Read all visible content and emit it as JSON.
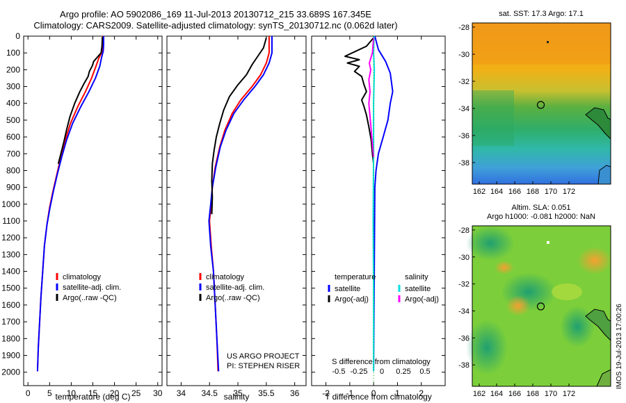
{
  "header": {
    "title1": "Argo profile: AO 5902086_169 11-Jul-2013 20130712_215 33.689S 167.345E",
    "title2": "Climatology: CARS2009. Satellite-adjusted climatology: synTS_20130712.nc (0.062d later)"
  },
  "colors": {
    "climatology": "#ff0000",
    "satellite": "#0000ff",
    "argo": "#000000",
    "sat_sal": "#00e0e0",
    "argo_sal": "#ff00ff"
  },
  "chart_data": [
    {
      "type": "line",
      "name": "temperature-profile",
      "xlabel": "temperature (deg C)",
      "ylabel": "",
      "xlim": [
        -1,
        31
      ],
      "ylim": [
        2080,
        0
      ],
      "xticks": [
        0,
        5,
        10,
        15,
        20,
        25,
        30
      ],
      "yticks": [
        0,
        100,
        200,
        300,
        400,
        500,
        600,
        700,
        800,
        900,
        1000,
        1100,
        1200,
        1300,
        1400,
        1500,
        1600,
        1700,
        1800,
        1900,
        2000
      ],
      "legend": {
        "placement": "lower-middle",
        "entries": [
          "climatology",
          "satellite-adj. clim.",
          "Argo(..raw -QC)"
        ]
      },
      "series": [
        {
          "name": "climatology",
          "color": "#ff0000",
          "points": [
            [
              17.3,
              0
            ],
            [
              17.3,
              50
            ],
            [
              17.2,
              90
            ],
            [
              16.4,
              130
            ],
            [
              15.7,
              180
            ],
            [
              14.7,
              250
            ],
            [
              13.3,
              330
            ],
            [
              11.5,
              420
            ],
            [
              9.8,
              520
            ],
            [
              8.6,
              620
            ],
            [
              7.6,
              720
            ],
            [
              6.7,
              820
            ],
            [
              5.8,
              920
            ],
            [
              5.0,
              1020
            ],
            [
              4.4,
              1120
            ],
            [
              3.8,
              1250
            ],
            [
              3.4,
              1400
            ],
            [
              3.0,
              1550
            ],
            [
              2.7,
              1700
            ],
            [
              2.4,
              1850
            ],
            [
              2.2,
              1995
            ]
          ]
        },
        {
          "name": "satellite-adj. clim.",
          "color": "#0000ff",
          "points": [
            [
              17.5,
              0
            ],
            [
              17.5,
              50
            ],
            [
              17.4,
              90
            ],
            [
              17.0,
              130
            ],
            [
              16.6,
              180
            ],
            [
              15.6,
              250
            ],
            [
              14.1,
              330
            ],
            [
              12.2,
              420
            ],
            [
              10.3,
              520
            ],
            [
              8.9,
              620
            ],
            [
              7.8,
              720
            ],
            [
              6.8,
              820
            ],
            [
              5.9,
              920
            ],
            [
              5.1,
              1020
            ],
            [
              4.4,
              1120
            ],
            [
              3.8,
              1250
            ],
            [
              3.4,
              1400
            ],
            [
              3.0,
              1550
            ],
            [
              2.7,
              1700
            ],
            [
              2.4,
              1850
            ],
            [
              2.2,
              1995
            ]
          ]
        },
        {
          "name": "Argo(..raw -QC)",
          "color": "#000000",
          "points": [
            [
              17.2,
              5
            ],
            [
              17.1,
              60
            ],
            [
              16.9,
              100
            ],
            [
              15.2,
              150
            ],
            [
              14.9,
              175
            ],
            [
              14.2,
              210
            ],
            [
              13.9,
              240
            ],
            [
              13.0,
              280
            ],
            [
              12.0,
              330
            ],
            [
              10.8,
              400
            ],
            [
              9.7,
              480
            ],
            [
              8.9,
              560
            ],
            [
              8.2,
              640
            ],
            [
              7.6,
              700
            ],
            [
              7.0,
              760
            ]
          ]
        }
      ]
    },
    {
      "type": "line",
      "name": "salinity-profile",
      "xlabel": "salinity",
      "ylabel": "",
      "xlim": [
        33.75,
        36.2
      ],
      "ylim": [
        2080,
        0
      ],
      "xticks": [
        34,
        34.5,
        35,
        35.5,
        36
      ],
      "legend": {
        "placement": "lower-middle",
        "entries": [
          "climatology",
          "satellite-adj. clim.",
          "Argo(..raw -QC)"
        ]
      },
      "annotations": [
        "US ARGO PROJECT",
        "PI: STEPHEN RISER"
      ],
      "series": [
        {
          "name": "climatology",
          "color": "#ff0000",
          "points": [
            [
              35.55,
              0
            ],
            [
              35.55,
              100
            ],
            [
              35.5,
              160
            ],
            [
              35.4,
              230
            ],
            [
              35.25,
              300
            ],
            [
              35.05,
              380
            ],
            [
              34.9,
              460
            ],
            [
              34.77,
              560
            ],
            [
              34.68,
              660
            ],
            [
              34.6,
              780
            ],
            [
              34.55,
              900
            ],
            [
              34.53,
              1000
            ],
            [
              34.5,
              1100
            ],
            [
              34.53,
              1250
            ],
            [
              34.57,
              1400
            ],
            [
              34.6,
              1600
            ],
            [
              34.63,
              1800
            ],
            [
              34.65,
              1995
            ]
          ]
        },
        {
          "name": "satellite-adj. clim.",
          "color": "#0000ff",
          "points": [
            [
              35.6,
              0
            ],
            [
              35.6,
              100
            ],
            [
              35.55,
              160
            ],
            [
              35.45,
              230
            ],
            [
              35.3,
              300
            ],
            [
              35.1,
              380
            ],
            [
              34.93,
              460
            ],
            [
              34.79,
              560
            ],
            [
              34.69,
              660
            ],
            [
              34.61,
              780
            ],
            [
              34.55,
              900
            ],
            [
              34.52,
              1000
            ],
            [
              34.49,
              1100
            ],
            [
              34.52,
              1250
            ],
            [
              34.57,
              1400
            ],
            [
              34.6,
              1600
            ],
            [
              34.63,
              1800
            ],
            [
              34.66,
              1995
            ]
          ]
        },
        {
          "name": "Argo(..raw -QC)",
          "color": "#000000",
          "points": [
            [
              35.5,
              10
            ],
            [
              35.45,
              70
            ],
            [
              35.35,
              120
            ],
            [
              35.25,
              170
            ],
            [
              35.15,
              230
            ],
            [
              35.0,
              290
            ],
            [
              34.85,
              360
            ],
            [
              34.75,
              440
            ],
            [
              34.68,
              520
            ],
            [
              34.62,
              600
            ],
            [
              34.58,
              680
            ],
            [
              34.55,
              760
            ],
            [
              34.54,
              860
            ],
            [
              34.55,
              960
            ],
            [
              34.54,
              1060
            ]
          ]
        }
      ]
    },
    {
      "type": "line",
      "name": "difference-from-climatology",
      "xlabel": "T difference from climatology",
      "xlabel2": "S difference from climatology",
      "xlim": [
        -2.6,
        3.0
      ],
      "ylim": [
        2080,
        0
      ],
      "xticks": [
        -2,
        -1,
        0,
        1,
        2
      ],
      "sticks": [
        -0.5,
        -0.25,
        0,
        0.25,
        0.5
      ],
      "legend": {
        "placement": "lower",
        "entries": [
          "temperature",
          "satellite",
          "Argo(-adj)",
          "salinity",
          "satellite",
          "Argo(-adj)"
        ]
      },
      "series": [
        {
          "name": "temperature satellite",
          "color": "#0000ff",
          "points": [
            [
              0.05,
              0
            ],
            [
              0.2,
              80
            ],
            [
              0.5,
              150
            ],
            [
              0.7,
              220
            ],
            [
              0.8,
              330
            ],
            [
              0.7,
              400
            ],
            [
              0.6,
              500
            ],
            [
              0.4,
              600
            ],
            [
              0.2,
              700
            ],
            [
              0.1,
              800
            ],
            [
              0.05,
              900
            ],
            [
              0.0,
              1995
            ]
          ]
        },
        {
          "name": "temperature Argo(-adj)",
          "color": "#000000",
          "points": [
            [
              0.0,
              10
            ],
            [
              -0.3,
              60
            ],
            [
              -1.2,
              120
            ],
            [
              -0.6,
              140
            ],
            [
              -1.1,
              160
            ],
            [
              -0.6,
              180
            ],
            [
              -0.8,
              210
            ],
            [
              -0.5,
              240
            ],
            [
              -0.4,
              290
            ],
            [
              -0.3,
              330
            ],
            [
              -0.5,
              380
            ],
            [
              -0.4,
              420
            ],
            [
              -0.3,
              470
            ],
            [
              -0.2,
              540
            ],
            [
              -0.1,
              620
            ],
            [
              -0.05,
              700
            ],
            [
              0.0,
              760
            ]
          ]
        },
        {
          "name": "salinity satellite",
          "color": "#00e0e0",
          "points": [
            [
              0.02,
              0
            ],
            [
              0.0,
              100
            ],
            [
              0.03,
              200
            ],
            [
              0.0,
              400
            ],
            [
              0.0,
              700
            ],
            [
              -0.02,
              1100
            ],
            [
              0.0,
              1500
            ],
            [
              0.0,
              1995
            ]
          ]
        },
        {
          "name": "salinity Argo(-adj)",
          "color": "#ff00ff",
          "points": [
            [
              0.0,
              10
            ],
            [
              -0.05,
              100
            ],
            [
              -0.18,
              160
            ],
            [
              -0.12,
              200
            ],
            [
              -0.2,
              260
            ],
            [
              -0.15,
              330
            ],
            [
              -0.2,
              400
            ],
            [
              -0.15,
              480
            ],
            [
              -0.1,
              560
            ],
            [
              -0.05,
              640
            ],
            [
              0.0,
              720
            ]
          ]
        }
      ]
    }
  ],
  "maps": {
    "sst": {
      "title": "sat. SST: 17.3 Argo: 17.1",
      "yticks": [
        "-28",
        "-30",
        "-32",
        "-34",
        "-36",
        "-38"
      ],
      "xticks": [
        "162",
        "164",
        "166",
        "168",
        "170",
        "172"
      ]
    },
    "sla": {
      "title1": "Altim. SLA: 0.051",
      "title2": "Argo h1000: -0.081 h2000: NaN",
      "yticks": [
        "-28",
        "-30",
        "-32",
        "-34",
        "-36",
        "-38"
      ],
      "xticks": [
        "162",
        "164",
        "166",
        "168",
        "170",
        "172"
      ]
    }
  },
  "footer": {
    "stamp": "IMOS 19-Jul-2013 17:00:26"
  }
}
